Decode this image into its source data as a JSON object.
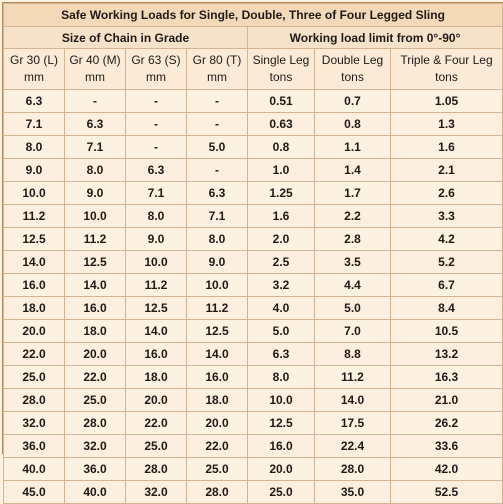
{
  "title": "Safe Working Loads for Single, Double, Three of Four Legged Sling",
  "group_chain": "Size of Chain in Grade",
  "group_wll": "Working load limit from 0°-90°",
  "headers": [
    {
      "l1": "Gr 30 (L)",
      "l2": "mm"
    },
    {
      "l1": "Gr 40 (M)",
      "l2": "mm"
    },
    {
      "l1": "Gr 63 (S)",
      "l2": "mm"
    },
    {
      "l1": "Gr 80 (T)",
      "l2": "mm"
    },
    {
      "l1": "Single Leg",
      "l2": "tons"
    },
    {
      "l1": "Double Leg",
      "l2": "tons"
    },
    {
      "l1": "Triple & Four Leg",
      "l2": "tons"
    }
  ],
  "rows": [
    [
      "6.3",
      "-",
      "-",
      "-",
      "0.51",
      "0.7",
      "1.05"
    ],
    [
      "7.1",
      "6.3",
      "-",
      "-",
      "0.63",
      "0.8",
      "1.3"
    ],
    [
      "8.0",
      "7.1",
      "-",
      "5.0",
      "0.8",
      "1.1",
      "1.6"
    ],
    [
      "9.0",
      "8.0",
      "6.3",
      "-",
      "1.0",
      "1.4",
      "2.1"
    ],
    [
      "10.0",
      "9.0",
      "7.1",
      "6.3",
      "1.25",
      "1.7",
      "2.6"
    ],
    [
      "11.2",
      "10.0",
      "8.0",
      "7.1",
      "1.6",
      "2.2",
      "3.3"
    ],
    [
      "12.5",
      "11.2",
      "9.0",
      "8.0",
      "2.0",
      "2.8",
      "4.2"
    ],
    [
      "14.0",
      "12.5",
      "10.0",
      "9.0",
      "2.5",
      "3.5",
      "5.2"
    ],
    [
      "16.0",
      "14.0",
      "11.2",
      "10.0",
      "3.2",
      "4.4",
      "6.7"
    ],
    [
      "18.0",
      "16.0",
      "12.5",
      "11.2",
      "4.0",
      "5.0",
      "8.4"
    ],
    [
      "20.0",
      "18.0",
      "14.0",
      "12.5",
      "5.0",
      "7.0",
      "10.5"
    ],
    [
      "22.0",
      "20.0",
      "16.0",
      "14.0",
      "6.3",
      "8.8",
      "13.2"
    ],
    [
      "25.0",
      "22.0",
      "18.0",
      "16.0",
      "8.0",
      "11.2",
      "16.3"
    ],
    [
      "28.0",
      "25.0",
      "20.0",
      "18.0",
      "10.0",
      "14.0",
      "21.0"
    ],
    [
      "32.0",
      "28.0",
      "22.0",
      "20.0",
      "12.5",
      "17.5",
      "26.2"
    ],
    [
      "36.0",
      "32.0",
      "25.0",
      "22.0",
      "16.0",
      "22.4",
      "33.6"
    ],
    [
      "40.0",
      "36.0",
      "28.0",
      "25.0",
      "20.0",
      "28.0",
      "42.0"
    ],
    [
      "45.0",
      "40.0",
      "32.0",
      "28.0",
      "25.0",
      "35.0",
      "52.5"
    ]
  ]
}
